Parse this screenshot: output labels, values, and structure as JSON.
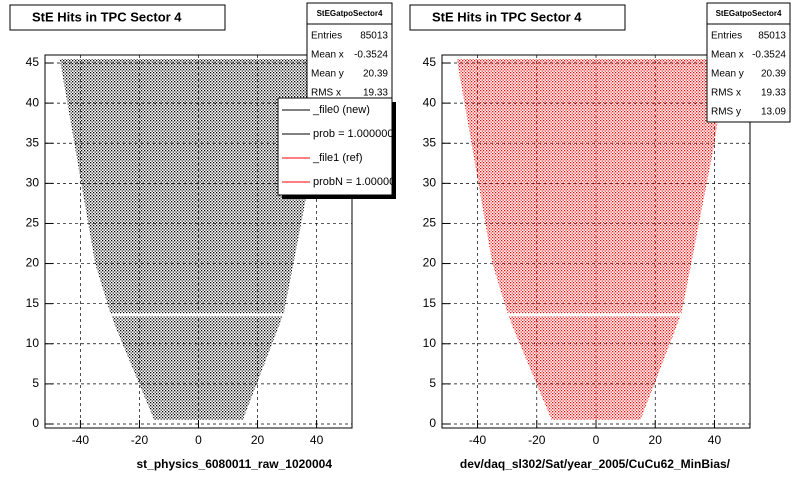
{
  "chart_data": [
    {
      "type": "scatter",
      "title": "StE Hits in TPC Sector 4",
      "xlabel": "st_physics_6080011_raw_1020004",
      "xlim": [
        -52,
        52
      ],
      "ylim": [
        -0.5,
        46
      ],
      "xticks": [
        -40,
        -20,
        0,
        20,
        40
      ],
      "yticks": [
        0,
        5,
        10,
        15,
        20,
        25,
        30,
        35,
        40,
        45
      ],
      "grid": true,
      "series": [
        {
          "color": "#000000",
          "x": [
            -47,
            44,
            40,
            29,
            27,
            15,
            -15,
            -28,
            -30,
            -35
          ],
          "y": [
            45.5,
            45.5,
            35,
            14,
            12,
            0.5,
            0.5,
            12,
            14,
            20
          ]
        }
      ],
      "stats": {
        "title": "StEGatpoSector4",
        "rows": [
          {
            "label": "Entries",
            "value": 85013
          },
          {
            "label": "Mean x",
            "value": -0.3524
          },
          {
            "label": "Mean y",
            "value": 20.39
          },
          {
            "label": "RMS x",
            "value": 19.33
          }
        ]
      },
      "legend": [
        {
          "label": "_file0 (new)",
          "color": "#000000"
        },
        {
          "label": "prob = 1.000000",
          "color": "#000000"
        },
        {
          "label": "_file1 (ref)",
          "color": "#ff0000"
        },
        {
          "label": "probN = 1.000000",
          "color": "#ff0000"
        }
      ]
    },
    {
      "type": "scatter",
      "title": "StE Hits in TPC Sector 4",
      "xlabel": "dev/daq_sl302/Sat/year_2005/CuCu62_MinBias/",
      "xlim": [
        -52,
        52
      ],
      "ylim": [
        -0.5,
        46
      ],
      "xticks": [
        -40,
        -20,
        0,
        20,
        40
      ],
      "yticks": [
        0,
        5,
        10,
        15,
        20,
        25,
        30,
        35,
        40,
        45
      ],
      "grid": true,
      "series": [
        {
          "color": "#ff0000",
          "x": [
            -47,
            44,
            40,
            29,
            27,
            15,
            -15,
            -28,
            -30,
            -35
          ],
          "y": [
            45.5,
            45.5,
            35,
            14,
            12,
            0.5,
            0.5,
            12,
            14,
            20
          ]
        }
      ],
      "stats": {
        "title": "StEGatpoSector4",
        "rows": [
          {
            "label": "Entries",
            "value": 85013
          },
          {
            "label": "Mean x",
            "value": -0.3524
          },
          {
            "label": "Mean y",
            "value": 20.39
          },
          {
            "label": "RMS x",
            "value": 19.33
          },
          {
            "label": "RMS y",
            "value": 13.09
          }
        ]
      }
    }
  ]
}
